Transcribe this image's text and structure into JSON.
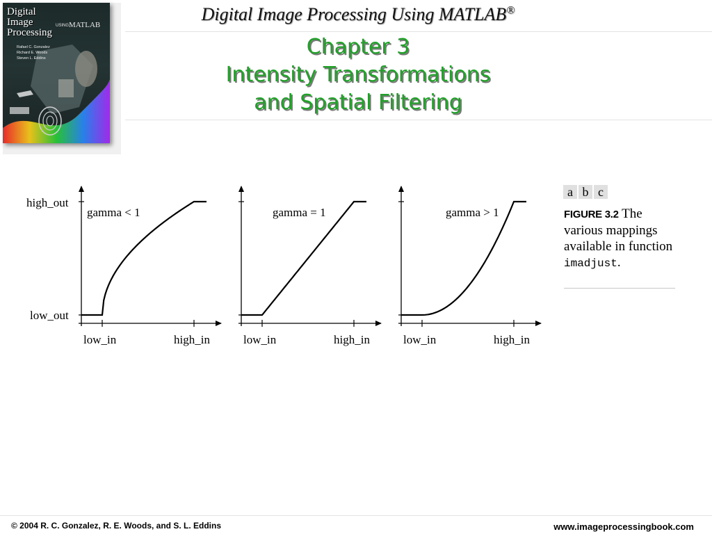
{
  "header": {
    "book_title": "Digital Image Processing Using MATLAB",
    "registered_mark": "®",
    "chapter_line1": "Chapter 3",
    "chapter_line2": "Intensity Transformations",
    "chapter_line3": "and Spatial Filtering"
  },
  "cover": {
    "title_line1": "Digital",
    "title_line2": "Image",
    "title_line3": "Processing",
    "using": "USING",
    "matlab": "MATLAB",
    "author1": "Rafael C. Gonzalez",
    "author2": "Richard E. Woods",
    "author3": "Steven L. Eddins"
  },
  "figure": {
    "panel_letters": [
      "a",
      "b",
      "c"
    ],
    "caption_label": "FIGURE 3.2",
    "caption_text": " The various mappings available in function ",
    "caption_code": "imadjust",
    "caption_end": ".",
    "y_label_high": "high_out",
    "y_label_low": "low_out",
    "x_label_low": "low_in",
    "x_label_high": "high_in",
    "panels": [
      {
        "gamma_label": "gamma < 1",
        "gamma": 0.5
      },
      {
        "gamma_label": "gamma = 1",
        "gamma": 1
      },
      {
        "gamma_label": "gamma > 1",
        "gamma": 2
      }
    ]
  },
  "footer": {
    "copyright": "© 2004 R. C. Gonzalez, R. E. Woods, and S. L. Eddins",
    "website": "www.imageprocessingbook.com"
  },
  "colors": {
    "chapter_green": "#22a02a",
    "cover_dark": "#1c2a2a"
  }
}
